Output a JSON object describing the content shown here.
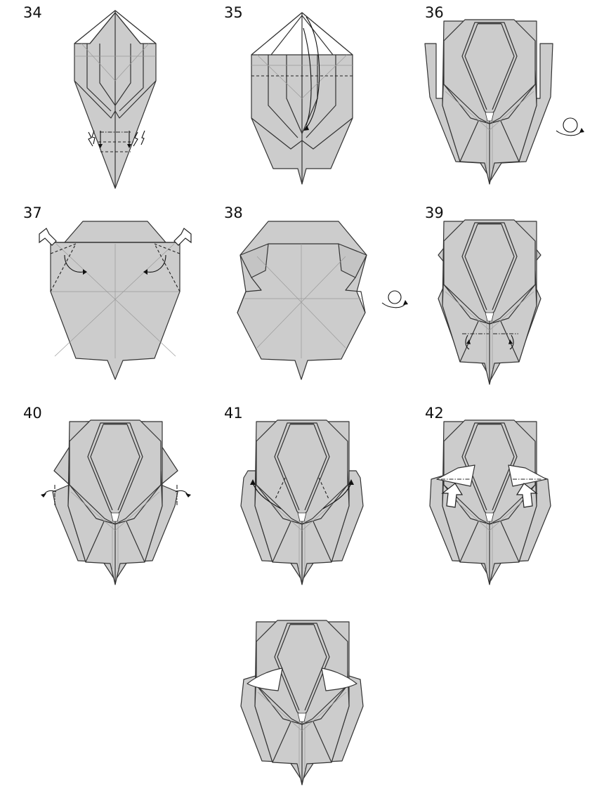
{
  "steps": [
    {
      "number": "34",
      "symbols": [
        "valley-fold-line",
        "mountain-fold-line",
        "pleat-arrows"
      ]
    },
    {
      "number": "35",
      "symbols": [
        "valley-fold-line",
        "fold-arrow"
      ]
    },
    {
      "number": "36",
      "symbols": [
        "turn-over-icon"
      ]
    },
    {
      "number": "37",
      "symbols": [
        "push-arrow",
        "valley-fold-line",
        "fold-arrow"
      ]
    },
    {
      "number": "38",
      "symbols": [
        "turn-over-icon"
      ]
    },
    {
      "number": "39",
      "symbols": [
        "mountain-fold-line",
        "fold-arrow"
      ]
    },
    {
      "number": "40",
      "symbols": [
        "mountain-fold-line",
        "fold-arrow"
      ]
    },
    {
      "number": "41",
      "symbols": [
        "valley-fold-line",
        "fold-arrow"
      ]
    },
    {
      "number": "42",
      "symbols": [
        "push-arrow",
        "mountain-fold-line"
      ]
    },
    {
      "number": "",
      "symbols": [
        "final-result"
      ]
    }
  ],
  "colors": {
    "paper": "#cccccc",
    "line": "#333333",
    "background": "#ffffff",
    "reverse_side": "#ffffff"
  }
}
